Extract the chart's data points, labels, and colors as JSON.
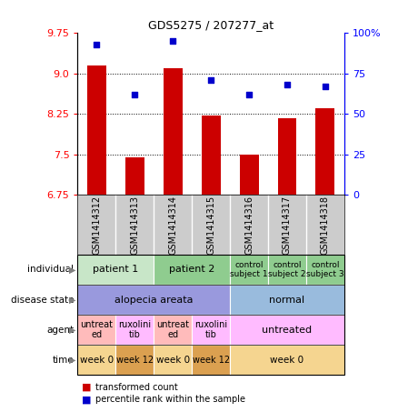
{
  "title": "GDS5275 / 207277_at",
  "samples": [
    "GSM1414312",
    "GSM1414313",
    "GSM1414314",
    "GSM1414315",
    "GSM1414316",
    "GSM1414317",
    "GSM1414318"
  ],
  "transformed_count": [
    9.15,
    7.45,
    9.1,
    8.22,
    7.49,
    8.17,
    8.35
  ],
  "percentile_rank": [
    93,
    62,
    95,
    71,
    62,
    68,
    67
  ],
  "ylim_left": [
    6.75,
    9.75
  ],
  "ylim_right": [
    0,
    100
  ],
  "yticks_left": [
    6.75,
    7.5,
    8.25,
    9.0,
    9.75
  ],
  "yticks_right": [
    0,
    25,
    50,
    75,
    100
  ],
  "ytick_labels_right": [
    "0",
    "25",
    "50",
    "75",
    "100%"
  ],
  "bar_color": "#cc0000",
  "dot_color": "#0000cc",
  "dot_size": 18,
  "bar_width": 0.5,
  "annotation_rows": [
    {
      "label": "individual",
      "cells": [
        {
          "text": "patient 1",
          "span": 2,
          "color": "#c8e6c8",
          "fontsize": 8
        },
        {
          "text": "patient 2",
          "span": 2,
          "color": "#8fcc8f",
          "fontsize": 8
        },
        {
          "text": "control\nsubject 1",
          "span": 1,
          "color": "#8fcc8f",
          "fontsize": 6.5
        },
        {
          "text": "control\nsubject 2",
          "span": 1,
          "color": "#8fcc8f",
          "fontsize": 6.5
        },
        {
          "text": "control\nsubject 3",
          "span": 1,
          "color": "#8fcc8f",
          "fontsize": 6.5
        }
      ]
    },
    {
      "label": "disease state",
      "cells": [
        {
          "text": "alopecia areata",
          "span": 4,
          "color": "#9999dd",
          "fontsize": 8
        },
        {
          "text": "normal",
          "span": 3,
          "color": "#99bbdd",
          "fontsize": 8
        }
      ]
    },
    {
      "label": "agent",
      "cells": [
        {
          "text": "untreat\ned",
          "span": 1,
          "color": "#ffbbbb",
          "fontsize": 7
        },
        {
          "text": "ruxolini\ntib",
          "span": 1,
          "color": "#ffbbff",
          "fontsize": 7
        },
        {
          "text": "untreat\ned",
          "span": 1,
          "color": "#ffbbbb",
          "fontsize": 7
        },
        {
          "text": "ruxolini\ntib",
          "span": 1,
          "color": "#ffbbff",
          "fontsize": 7
        },
        {
          "text": "untreated",
          "span": 3,
          "color": "#ffbbff",
          "fontsize": 8
        }
      ]
    },
    {
      "label": "time",
      "cells": [
        {
          "text": "week 0",
          "span": 1,
          "color": "#f5d590",
          "fontsize": 7.5
        },
        {
          "text": "week 12",
          "span": 1,
          "color": "#dba050",
          "fontsize": 7
        },
        {
          "text": "week 0",
          "span": 1,
          "color": "#f5d590",
          "fontsize": 7.5
        },
        {
          "text": "week 12",
          "span": 1,
          "color": "#dba050",
          "fontsize": 7
        },
        {
          "text": "week 0",
          "span": 3,
          "color": "#f5d590",
          "fontsize": 7.5
        }
      ]
    }
  ],
  "gsm_label_color": "#cccccc",
  "legend": [
    {
      "color": "#cc0000",
      "label": "transformed count"
    },
    {
      "color": "#0000cc",
      "label": "percentile rank within the sample"
    }
  ]
}
